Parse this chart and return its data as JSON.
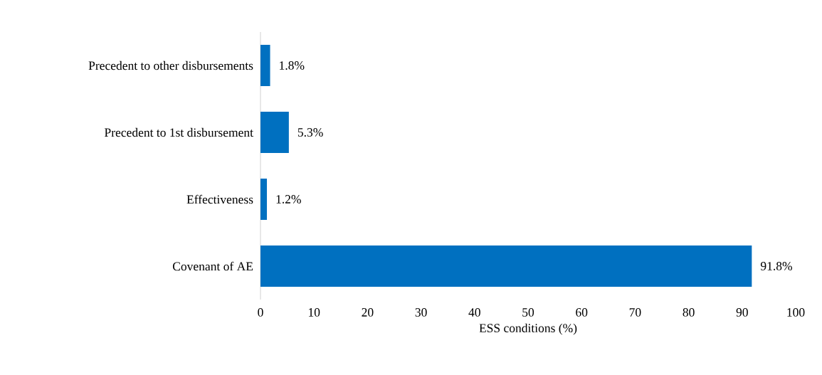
{
  "chart_data": {
    "type": "bar",
    "orientation": "horizontal",
    "xlabel": "ESS conditions (%)",
    "categories": [
      "Precedent to other disbursements",
      "Precedent to 1st disbursement",
      "Effectiveness",
      "Covenant of AE"
    ],
    "values": [
      1.8,
      5.3,
      1.2,
      91.8
    ],
    "value_labels": [
      "1.8%",
      "5.3%",
      "1.2%",
      "91.8%"
    ],
    "color": "#0070c0",
    "xlim": [
      0,
      100
    ],
    "xticks": [
      0,
      10,
      20,
      30,
      40,
      50,
      60,
      70,
      80,
      90,
      100
    ],
    "grid": false
  }
}
